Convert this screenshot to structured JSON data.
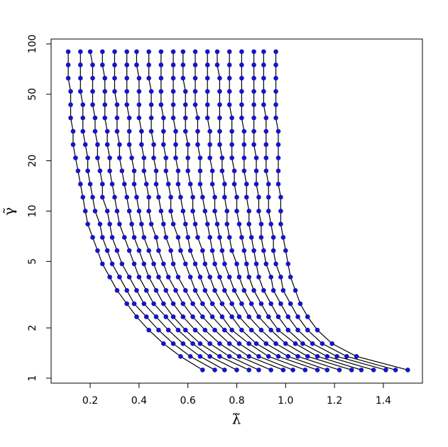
{
  "chart_data": {
    "type": "line",
    "x_label": "λ̃",
    "y_label": "γ̃",
    "log_y": true,
    "line_color": "#000000",
    "marker_color": "#1414c8",
    "xlim": [
      0.04,
      1.56
    ],
    "ylim": [
      0.934,
      107
    ],
    "xticks": [
      0.2,
      0.4,
      0.6,
      0.8,
      {
        "value": 1,
        "label": "1.0"
      },
      1.2,
      1.4
    ],
    "yticks": [
      1,
      2,
      5,
      10,
      20,
      50,
      100
    ],
    "y": [
      1.12,
      1.35,
      1.61,
      1.94,
      2.33,
      2.79,
      3.35,
      4.03,
      4.83,
      5.8,
      6.96,
      8.36,
      10,
      12.1,
      14.5,
      17.4,
      20.8,
      25,
      30,
      36.1,
      43.3,
      52,
      62.4,
      74.9,
      89.9
    ],
    "series": [
      {
        "x": [
          0.66,
          0.57,
          0.5,
          0.44,
          0.39,
          0.35,
          0.31,
          0.28,
          0.25,
          0.23,
          0.21,
          0.19,
          0.18,
          0.17,
          0.16,
          0.15,
          0.14,
          0.13,
          0.13,
          0.12,
          0.12,
          0.12,
          0.11,
          0.11,
          0.11
        ]
      },
      {
        "x": [
          0.71,
          0.61,
          0.54,
          0.48,
          0.43,
          0.38,
          0.35,
          0.32,
          0.29,
          0.27,
          0.25,
          0.24,
          0.22,
          0.21,
          0.2,
          0.19,
          0.19,
          0.18,
          0.17,
          0.17,
          0.17,
          0.16,
          0.16,
          0.16,
          0.16
        ]
      },
      {
        "x": [
          0.75,
          0.65,
          0.58,
          0.52,
          0.47,
          0.42,
          0.39,
          0.36,
          0.33,
          0.31,
          0.29,
          0.28,
          0.27,
          0.25,
          0.25,
          0.24,
          0.23,
          0.23,
          0.22,
          0.22,
          0.21,
          0.21,
          0.21,
          0.21,
          0.2
        ]
      },
      {
        "x": [
          0.8,
          0.69,
          0.62,
          0.56,
          0.51,
          0.46,
          0.43,
          0.4,
          0.38,
          0.36,
          0.34,
          0.32,
          0.31,
          0.3,
          0.29,
          0.28,
          0.28,
          0.27,
          0.27,
          0.26,
          0.26,
          0.26,
          0.26,
          0.25,
          0.25
        ]
      },
      {
        "x": [
          0.85,
          0.73,
          0.65,
          0.59,
          0.54,
          0.5,
          0.47,
          0.44,
          0.42,
          0.4,
          0.38,
          0.37,
          0.36,
          0.35,
          0.34,
          0.33,
          0.32,
          0.32,
          0.31,
          0.31,
          0.31,
          0.3,
          0.3,
          0.3,
          0.3
        ]
      },
      {
        "x": [
          0.89,
          0.77,
          0.69,
          0.63,
          0.58,
          0.54,
          0.51,
          0.48,
          0.46,
          0.44,
          0.42,
          0.41,
          0.4,
          0.39,
          0.38,
          0.38,
          0.37,
          0.36,
          0.36,
          0.36,
          0.35,
          0.35,
          0.35,
          0.35,
          0.35
        ]
      },
      {
        "x": [
          0.94,
          0.81,
          0.73,
          0.67,
          0.62,
          0.58,
          0.55,
          0.52,
          0.5,
          0.48,
          0.47,
          0.45,
          0.44,
          0.44,
          0.43,
          0.42,
          0.42,
          0.41,
          0.41,
          0.4,
          0.4,
          0.4,
          0.4,
          0.39,
          0.39
        ]
      },
      {
        "x": [
          0.99,
          0.85,
          0.77,
          0.71,
          0.66,
          0.62,
          0.59,
          0.56,
          0.54,
          0.53,
          0.51,
          0.5,
          0.49,
          0.48,
          0.47,
          0.47,
          0.46,
          0.46,
          0.45,
          0.45,
          0.45,
          0.45,
          0.44,
          0.44,
          0.44
        ]
      },
      {
        "x": [
          1.03,
          0.89,
          0.81,
          0.75,
          0.7,
          0.66,
          0.63,
          0.61,
          0.59,
          0.57,
          0.56,
          0.54,
          0.53,
          0.53,
          0.52,
          0.51,
          0.51,
          0.5,
          0.5,
          0.5,
          0.49,
          0.49,
          0.49,
          0.49,
          0.49
        ]
      },
      {
        "x": [
          1.08,
          0.93,
          0.85,
          0.78,
          0.74,
          0.7,
          0.67,
          0.65,
          0.63,
          0.61,
          0.6,
          0.59,
          0.58,
          0.57,
          0.56,
          0.56,
          0.55,
          0.55,
          0.55,
          0.54,
          0.54,
          0.54,
          0.54,
          0.54,
          0.54
        ]
      },
      {
        "x": [
          1.13,
          0.97,
          0.88,
          0.82,
          0.78,
          0.74,
          0.71,
          0.69,
          0.67,
          0.66,
          0.64,
          0.63,
          0.62,
          0.62,
          0.61,
          0.6,
          0.6,
          0.6,
          0.59,
          0.59,
          0.59,
          0.59,
          0.58,
          0.58,
          0.58
        ]
      },
      {
        "x": [
          1.17,
          1.01,
          0.92,
          0.86,
          0.81,
          0.78,
          0.75,
          0.73,
          0.71,
          0.7,
          0.69,
          0.68,
          0.67,
          0.66,
          0.65,
          0.65,
          0.65,
          0.64,
          0.64,
          0.64,
          0.63,
          0.63,
          0.63,
          0.63,
          0.63
        ]
      },
      {
        "x": [
          1.22,
          1.05,
          0.96,
          0.9,
          0.85,
          0.82,
          0.79,
          0.77,
          0.75,
          0.74,
          0.73,
          0.72,
          0.71,
          0.71,
          0.7,
          0.7,
          0.69,
          0.69,
          0.69,
          0.68,
          0.68,
          0.68,
          0.68,
          0.68,
          0.68
        ]
      },
      {
        "x": [
          1.27,
          1.09,
          1.0,
          0.94,
          0.89,
          0.86,
          0.83,
          0.81,
          0.8,
          0.78,
          0.77,
          0.76,
          0.76,
          0.75,
          0.75,
          0.74,
          0.74,
          0.73,
          0.73,
          0.73,
          0.73,
          0.73,
          0.73,
          0.72,
          0.72
        ]
      },
      {
        "x": [
          1.31,
          1.13,
          1.04,
          0.97,
          0.93,
          0.9,
          0.87,
          0.85,
          0.84,
          0.83,
          0.82,
          0.81,
          0.8,
          0.8,
          0.79,
          0.79,
          0.78,
          0.78,
          0.78,
          0.78,
          0.77,
          0.77,
          0.77,
          0.77,
          0.77
        ]
      },
      {
        "x": [
          1.36,
          1.17,
          1.07,
          1.01,
          0.97,
          0.94,
          0.91,
          0.89,
          0.88,
          0.87,
          0.86,
          0.85,
          0.85,
          0.84,
          0.84,
          0.83,
          0.83,
          0.83,
          0.83,
          0.82,
          0.82,
          0.82,
          0.82,
          0.82,
          0.82
        ]
      },
      {
        "x": [
          1.41,
          1.21,
          1.11,
          1.05,
          1.01,
          0.98,
          0.95,
          0.94,
          0.92,
          0.91,
          0.9,
          0.9,
          0.89,
          0.89,
          0.88,
          0.88,
          0.88,
          0.87,
          0.87,
          0.87,
          0.87,
          0.87,
          0.87,
          0.87,
          0.87
        ]
      },
      {
        "x": [
          1.45,
          1.25,
          1.15,
          1.09,
          1.05,
          1.02,
          0.99,
          0.98,
          0.96,
          0.95,
          0.95,
          0.94,
          0.93,
          0.93,
          0.93,
          0.92,
          0.92,
          0.92,
          0.92,
          0.92,
          0.91,
          0.91,
          0.91,
          0.91,
          0.91
        ]
      },
      {
        "x": [
          1.5,
          1.29,
          1.19,
          1.13,
          1.09,
          1.06,
          1.04,
          1.02,
          1.01,
          1.0,
          0.99,
          0.98,
          0.98,
          0.98,
          0.97,
          0.97,
          0.97,
          0.97,
          0.97,
          0.96,
          0.96,
          0.96,
          0.96,
          0.96,
          0.96
        ]
      }
    ]
  }
}
